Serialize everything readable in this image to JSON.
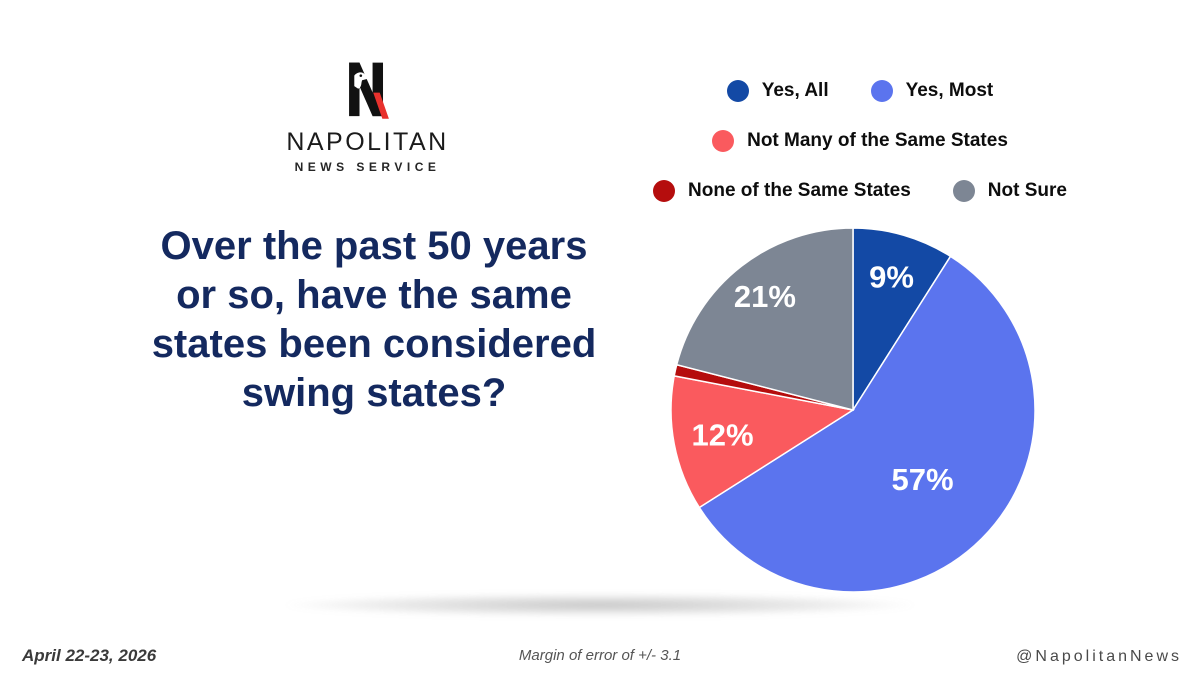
{
  "logo": {
    "brand": "NAPOLITAN",
    "tagline": "NEWS SERVICE",
    "icon": "napolitan-n-eagle-icon",
    "n_color": "#111111",
    "slash_color": "#e8312d"
  },
  "question": {
    "lines": [
      "Over the past 50 years",
      "or so, have the same",
      "states been considered",
      "swing states?"
    ],
    "color": "#14295f"
  },
  "legend": {
    "rows": [
      [
        "Yes, All",
        "Yes, Most"
      ],
      [
        "Not Many of the Same States"
      ],
      [
        "None of the Same States",
        "Not Sure"
      ]
    ]
  },
  "chart_data": {
    "type": "pie",
    "title": "Over the past 50 years or so, have the same states been considered swing states?",
    "labels": [
      "Yes, All",
      "Yes, Most",
      "Not Many of the Same States",
      "None of the Same States",
      "Not Sure"
    ],
    "values": [
      9,
      57,
      12,
      1,
      21
    ],
    "display_labels": [
      "9%",
      "57%",
      "12%",
      "",
      "21%"
    ],
    "colors": [
      "#1349a5",
      "#5b74ee",
      "#fa5a5e",
      "#b50d0d",
      "#7d8694"
    ],
    "start_angle_deg": 0,
    "direction": "clockwise",
    "label_radius_frac": [
      0.76,
      0.54,
      0.73,
      0,
      0.79
    ],
    "slice_stroke": "#ffffff",
    "legend_position": "top-right"
  },
  "footer": {
    "date": "April 22-23, 2026",
    "margin_of_error": "Margin of error of +/- 3.1",
    "handle": "@NapolitanNews"
  }
}
